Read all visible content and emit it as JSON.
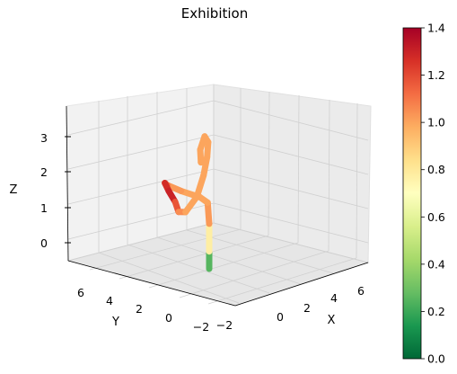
{
  "chart_data": {
    "type": "line3d",
    "title": "Exhibition",
    "xlabel": "X",
    "ylabel": "Y",
    "zlabel": "Z",
    "xlim": [
      -3,
      7
    ],
    "ylim": [
      -3,
      8
    ],
    "zlim": [
      -0.6,
      3.6
    ],
    "x_ticks": [
      "−2",
      "0",
      "2",
      "4",
      "6"
    ],
    "y_ticks": [
      "−2",
      "0",
      "2",
      "4",
      "6"
    ],
    "z_ticks": [
      "0",
      "1",
      "2",
      "3"
    ],
    "colorbar": {
      "colormap": "RdYlGn_r",
      "range": [
        0.0,
        1.4
      ],
      "ticks": [
        "0.0",
        "0.2",
        "0.4",
        "0.6",
        "0.8",
        "1.0",
        "1.2",
        "1.4"
      ]
    },
    "grid": true,
    "series": [
      {
        "points": [
          {
            "x": 5.2,
            "y": 7.0,
            "z": 0.0,
            "c": 0.0
          },
          {
            "x": 5.2,
            "y": 7.0,
            "z": 0.5,
            "c": 0.5
          },
          {
            "x": 5.2,
            "y": 7.0,
            "z": 1.3,
            "c": 1.05
          },
          {
            "x": 5.1,
            "y": 7.0,
            "z": 1.9,
            "c": 1.0
          },
          {
            "x": 4.6,
            "y": 7.0,
            "z": 2.0,
            "c": 1.0
          },
          {
            "x": 3.2,
            "y": 6.8,
            "z": 2.0,
            "c": 1.0
          },
          {
            "x": 1.8,
            "y": 6.2,
            "z": 1.95,
            "c": 1.05
          },
          {
            "x": 0.8,
            "y": 5.2,
            "z": 1.8,
            "c": 1.2
          },
          {
            "x": 0.2,
            "y": 4.2,
            "z": 1.4,
            "c": 1.35
          },
          {
            "x": -0.4,
            "y": 3.0,
            "z": 0.9,
            "c": 1.25
          },
          {
            "x": -1.2,
            "y": 1.8,
            "z": 0.4,
            "c": 1.1
          },
          {
            "x": -1.6,
            "y": 0.8,
            "z": 0.25,
            "c": 1.0
          },
          {
            "x": -1.2,
            "y": 0.4,
            "z": 0.7,
            "c": 1.0
          },
          {
            "x": -0.6,
            "y": 0.6,
            "z": 1.4,
            "c": 1.0
          },
          {
            "x": -0.2,
            "y": 0.8,
            "z": 2.0,
            "c": 1.0
          },
          {
            "x": -0.3,
            "y": 0.6,
            "z": 2.4,
            "c": 1.0
          },
          {
            "x": -0.7,
            "y": 0.4,
            "z": 2.5,
            "c": 1.0
          },
          {
            "x": -0.9,
            "y": 0.5,
            "z": 2.1,
            "c": 1.0
          },
          {
            "x": -0.6,
            "y": 0.8,
            "z": 1.8,
            "c": 1.0
          },
          {
            "x": -0.1,
            "y": 1.2,
            "z": 1.9,
            "c": 1.0
          }
        ]
      }
    ]
  }
}
